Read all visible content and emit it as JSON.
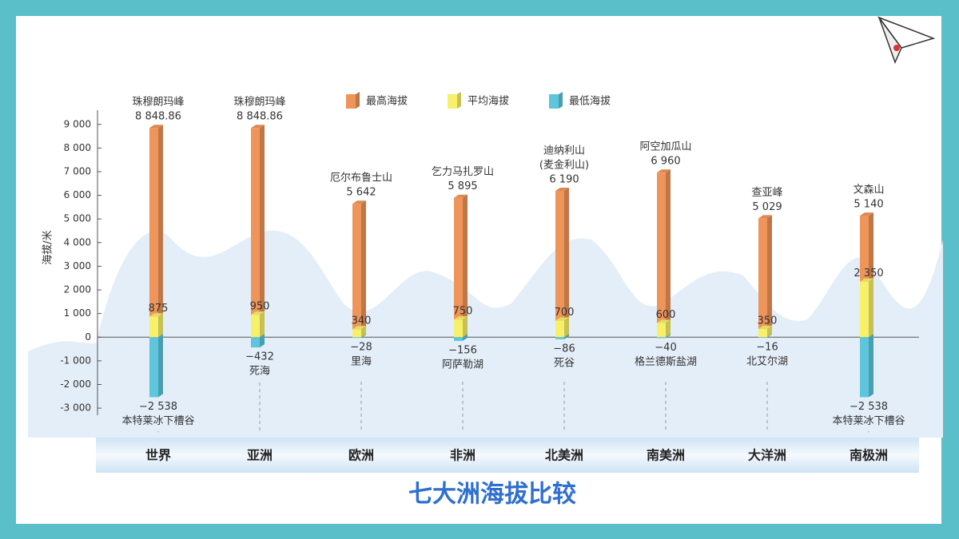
{
  "chart_data": {
    "type": "bar",
    "title": "七大洲海拔比较",
    "y_label": "海拔/米",
    "categories": [
      "世界",
      "亚洲",
      "欧洲",
      "非洲",
      "北美洲",
      "南美洲",
      "大洋洲",
      "南极洲"
    ],
    "series": [
      {
        "name": "最高海拔",
        "color": "#f0955a",
        "values": [
          8848.86,
          8848.86,
          5642,
          5895,
          6190,
          6960,
          5029,
          5140
        ],
        "value_labels": [
          "8 848.86",
          "8 848.86",
          "5 642",
          "5 895",
          "6 190",
          "6 960",
          "5 029",
          "5 140"
        ]
      },
      {
        "name": "平均海拔",
        "color": "#f7f06a",
        "values": [
          875,
          950,
          340,
          750,
          700,
          600,
          350,
          2350
        ],
        "value_labels": [
          "875",
          "950",
          "340",
          "750",
          "700",
          "600",
          "350",
          "2 350"
        ]
      },
      {
        "name": "最低海拔",
        "color": "#5ec6dc",
        "values": [
          -2538,
          -432,
          -28,
          -156,
          -86,
          -40,
          -16,
          -2538
        ],
        "value_labels": [
          "−2 538",
          "−432",
          "−28",
          "−156",
          "−86",
          "−40",
          "−16",
          "−2 538"
        ]
      }
    ],
    "peak_names": [
      [
        "珠穆朗玛峰"
      ],
      [
        "珠穆朗玛峰"
      ],
      [
        "厄尔布鲁士山"
      ],
      [
        "乞力马扎罗山"
      ],
      [
        "迪纳利山",
        "(麦金利山)"
      ],
      [
        "阿空加瓜山"
      ],
      [
        "查亚峰"
      ],
      [
        "文森山"
      ]
    ],
    "low_names": [
      "本特莱冰下槽谷",
      "死海",
      "里海",
      "阿萨勒湖",
      "死谷",
      "格兰德斯盐湖",
      "北艾尔湖",
      "本特莱冰下槽谷"
    ],
    "ylim": [
      -3300,
      9600
    ],
    "yticks": [
      {
        "value": 9000,
        "label": "9 000"
      },
      {
        "value": 8000,
        "label": "8 000"
      },
      {
        "value": 7000,
        "label": "7 000"
      },
      {
        "value": 6000,
        "label": "6 000"
      },
      {
        "value": 5000,
        "label": "5 000"
      },
      {
        "value": 4000,
        "label": "4 000"
      },
      {
        "value": 3000,
        "label": "3 000"
      },
      {
        "value": 2000,
        "label": "2 000"
      },
      {
        "value": 1000,
        "label": "1 000"
      },
      0,
      {
        "value": -1000,
        "label": "-1 000"
      },
      {
        "value": -2000,
        "label": "-2 000"
      },
      {
        "value": -3000,
        "label": "-3 000"
      }
    ]
  }
}
